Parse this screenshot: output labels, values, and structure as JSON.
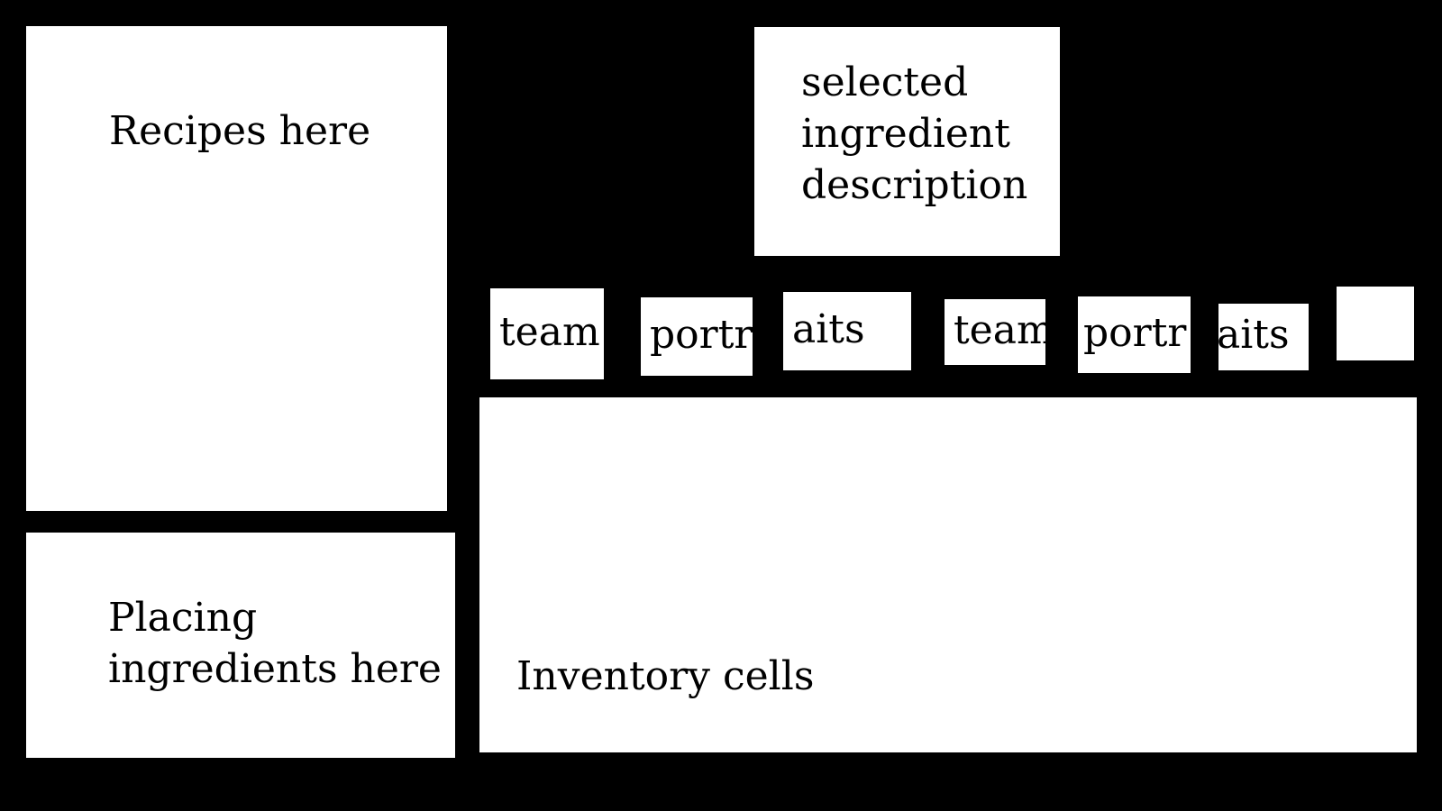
{
  "recipes": {
    "label": "Recipes here"
  },
  "placing": {
    "label": "Placing\ningredients here"
  },
  "description": {
    "label": "selected\ningredient\ndescription"
  },
  "inventory": {
    "label": "Inventory cells"
  },
  "tabs": [
    {
      "label": "team"
    },
    {
      "label": "portr"
    },
    {
      "label": "aits"
    },
    {
      "label": "team"
    },
    {
      "label": "portr"
    },
    {
      "label": "aits"
    },
    {
      "label": ""
    }
  ],
  "colors": {
    "background": "#000000",
    "panel": "#ffffff",
    "text": "#000000"
  }
}
